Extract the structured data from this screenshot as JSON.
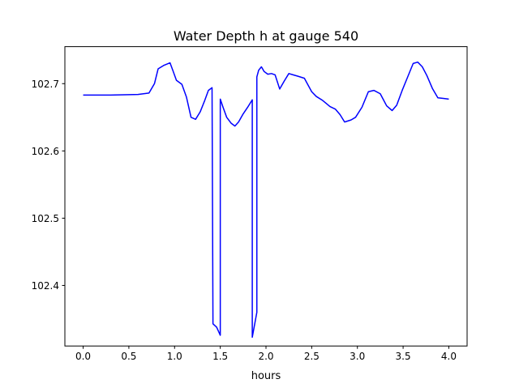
{
  "chart_data": {
    "type": "line",
    "title": "Water Depth h at gauge 540",
    "xlabel": "hours",
    "ylabel": "",
    "xlim": [
      -0.2,
      4.2
    ],
    "ylim": [
      102.31,
      102.755
    ],
    "xticks": [
      0.0,
      0.5,
      1.0,
      1.5,
      2.0,
      2.5,
      3.0,
      3.5,
      4.0
    ],
    "xtick_labels": [
      "0.0",
      "0.5",
      "1.0",
      "1.5",
      "2.0",
      "2.5",
      "3.0",
      "3.5",
      "4.0"
    ],
    "yticks": [
      102.4,
      102.5,
      102.6,
      102.7
    ],
    "ytick_labels": [
      "102.4",
      "102.5",
      "102.6",
      "102.7"
    ],
    "grid": false,
    "series": [
      {
        "color": "#0000ff",
        "x": [
          0.0,
          0.3,
          0.6,
          0.72,
          0.78,
          0.82,
          0.88,
          0.95,
          0.98,
          1.02,
          1.08,
          1.13,
          1.18,
          1.23,
          1.28,
          1.33,
          1.37,
          1.41,
          1.42,
          1.46,
          1.5,
          1.5,
          1.53,
          1.57,
          1.62,
          1.66,
          1.7,
          1.75,
          1.8,
          1.85,
          1.85,
          1.9,
          1.9,
          1.92,
          1.95,
          1.98,
          2.02,
          2.06,
          2.1,
          2.15,
          2.2,
          2.25,
          2.3,
          2.35,
          2.42,
          2.5,
          2.55,
          2.62,
          2.7,
          2.76,
          2.81,
          2.86,
          2.93,
          2.98,
          3.05,
          3.12,
          3.18,
          3.25,
          3.32,
          3.38,
          3.43,
          3.49,
          3.55,
          3.61,
          3.66,
          3.71,
          3.76,
          3.82,
          3.88,
          3.94,
          4.0
        ],
        "y": [
          102.683,
          102.683,
          102.684,
          102.686,
          102.7,
          102.722,
          102.727,
          102.731,
          102.72,
          102.705,
          102.699,
          102.68,
          102.65,
          102.647,
          102.658,
          102.675,
          102.69,
          102.694,
          102.343,
          102.338,
          102.326,
          102.677,
          102.665,
          102.65,
          102.641,
          102.637,
          102.643,
          102.655,
          102.665,
          102.676,
          102.323,
          102.36,
          102.71,
          102.72,
          102.725,
          102.718,
          102.714,
          102.715,
          102.713,
          102.692,
          102.704,
          102.715,
          102.713,
          102.711,
          102.708,
          102.688,
          102.681,
          102.675,
          102.666,
          102.662,
          102.654,
          102.643,
          102.646,
          102.65,
          102.665,
          102.688,
          102.69,
          102.685,
          102.667,
          102.66,
          102.668,
          102.69,
          102.71,
          102.73,
          102.732,
          102.725,
          102.712,
          102.693,
          102.679,
          102.678,
          102.677
        ]
      }
    ]
  }
}
